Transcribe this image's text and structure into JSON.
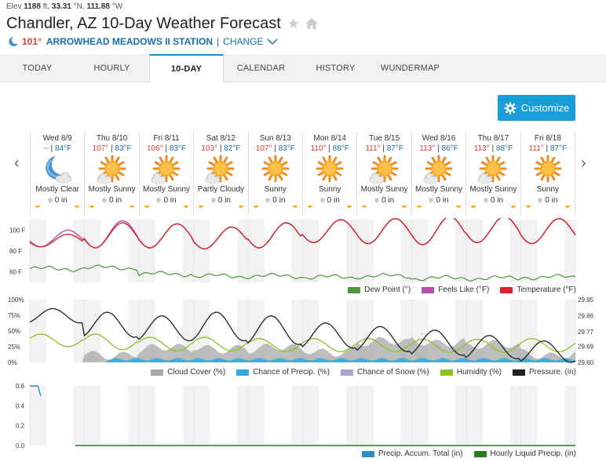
{
  "header": {
    "elev_label": "Elev",
    "elev_value": "1188",
    "elev_unit": "ft,",
    "lat_value": "33.31",
    "lat_unit": "°N,",
    "lon_value": "111.88",
    "lon_unit": "°W",
    "title": "Chandler, AZ 10-Day Weather Forecast",
    "current_temp": "101°",
    "station": "ARROWHEAD MEADOWS II STATION",
    "separator": "|",
    "change_label": "CHANGE"
  },
  "tabs": [
    {
      "label": "TODAY"
    },
    {
      "label": "HOURLY"
    },
    {
      "label": "10-DAY"
    },
    {
      "label": "CALENDAR"
    },
    {
      "label": "HISTORY"
    },
    {
      "label": "WUNDERMAP"
    }
  ],
  "customize_label": "Customize",
  "days": [
    {
      "date": "Wed 8/9",
      "hi": "--",
      "lo": "84°F",
      "icon": "moon-cloud-icon",
      "cond": "Mostly Clear",
      "precip": "0 in"
    },
    {
      "date": "Thu 8/10",
      "hi": "107°",
      "lo": "83°F",
      "icon": "sun-cloud-icon",
      "cond": "Mostly Sunny",
      "precip": "0 in"
    },
    {
      "date": "Fri 8/11",
      "hi": "106°",
      "lo": "83°F",
      "icon": "sun-cloud-icon",
      "cond": "Mostly Sunny",
      "precip": "0 in"
    },
    {
      "date": "Sat 8/12",
      "hi": "103°",
      "lo": "82°F",
      "icon": "sun-cloud-icon",
      "cond": "Partly Cloudy",
      "precip": "0 in"
    },
    {
      "date": "Sun 8/13",
      "hi": "107°",
      "lo": "83°F",
      "icon": "sun-icon",
      "cond": "Sunny",
      "precip": "0 in"
    },
    {
      "date": "Mon 8/14",
      "hi": "110°",
      "lo": "88°F",
      "icon": "sun-icon",
      "cond": "Sunny",
      "precip": "0 in"
    },
    {
      "date": "Tue 8/15",
      "hi": "111°",
      "lo": "87°F",
      "icon": "sun-cloud-icon",
      "cond": "Mostly Sunny",
      "precip": "0 in"
    },
    {
      "date": "Wed 8/16",
      "hi": "113°",
      "lo": "86°F",
      "icon": "sun-cloud-icon",
      "cond": "Mostly Sunny",
      "precip": "0 in"
    },
    {
      "date": "Thu 8/17",
      "hi": "113°",
      "lo": "88°F",
      "icon": "sun-cloud-icon",
      "cond": "Mostly Sunny",
      "precip": "0 in"
    },
    {
      "date": "Fri 8/18",
      "hi": "111°",
      "lo": "87°F",
      "icon": "sun-icon",
      "cond": "Sunny",
      "precip": "0 in"
    }
  ],
  "colors": {
    "temperature": "#d9232d",
    "feels_like": "#b050a8",
    "dew_point": "#4a9a3a",
    "cloud_cover": "#a8a8a8",
    "chance_precip": "#33aadd",
    "chance_snow": "#b0a0d0",
    "humidity": "#8ac41e",
    "pressure": "#222222",
    "precip_accum": "#2e8bc0",
    "hourly_liquid": "#2a7a20"
  },
  "chart_data": [
    {
      "type": "line",
      "yticks": [
        "100 F",
        "80 F",
        "60 F"
      ],
      "y_tick_values": [
        100,
        80,
        60
      ],
      "ylim": [
        50,
        110
      ],
      "series": [
        {
          "name": "Temperature (°F)",
          "key": "temperature",
          "daily_high": [
            96,
            107,
            106,
            103,
            107,
            110,
            111,
            113,
            113,
            111
          ],
          "daily_low": [
            84,
            83,
            83,
            82,
            83,
            88,
            87,
            86,
            88,
            87
          ]
        },
        {
          "name": "Feels Like (°F)",
          "key": "feels_like",
          "daily_high": [
            100,
            109,
            106,
            103,
            107,
            110,
            111,
            113,
            113,
            111
          ],
          "daily_low": [
            84,
            83,
            83,
            82,
            83,
            88,
            87,
            86,
            88,
            87
          ]
        },
        {
          "name": "Dew Point (°)",
          "key": "dew_point",
          "daily": [
            63,
            64,
            58,
            56,
            56,
            55,
            56,
            54,
            54,
            55
          ]
        }
      ]
    },
    {
      "type": "line",
      "yticks_left": [
        "100%",
        "75%",
        "50%",
        "25%",
        "0%"
      ],
      "y_tick_values_left": [
        100,
        75,
        50,
        25,
        0
      ],
      "yticks_right": [
        "29.95",
        "29.86",
        "29.77",
        "29.69",
        "29.60"
      ],
      "y_tick_values_right": [
        29.95,
        29.86,
        29.77,
        29.69,
        29.6
      ],
      "series": [
        {
          "name": "Cloud Cover (%)",
          "key": "cloud_cover",
          "daily": [
            0,
            15,
            20,
            25,
            20,
            20,
            30,
            35,
            25,
            15
          ]
        },
        {
          "name": "Chance of Precip. (%)",
          "key": "chance_precip",
          "daily": [
            0,
            5,
            5,
            5,
            5,
            5,
            5,
            5,
            5,
            5
          ]
        },
        {
          "name": "Chance of Snow (%)",
          "key": "chance_snow",
          "daily": [
            0,
            0,
            0,
            0,
            0,
            0,
            0,
            0,
            0,
            0
          ]
        },
        {
          "name": "Humidity (%)",
          "key": "humidity",
          "daily_max": [
            45,
            45,
            40,
            40,
            38,
            38,
            38,
            37,
            37,
            38
          ],
          "daily_min": [
            25,
            20,
            18,
            18,
            17,
            17,
            17,
            16,
            16,
            17
          ]
        },
        {
          "name": "Pressure. (in)",
          "key": "pressure",
          "daily_max": [
            29.9,
            29.88,
            29.86,
            29.88,
            29.86,
            29.82,
            29.8,
            29.78,
            29.75,
            29.72
          ],
          "daily_min": [
            29.82,
            29.74,
            29.72,
            29.72,
            29.7,
            29.68,
            29.66,
            29.64,
            29.62,
            29.6
          ]
        }
      ]
    },
    {
      "type": "line",
      "yticks": [
        "0.6",
        "0.4",
        "0.2",
        "0.0"
      ],
      "y_tick_values": [
        0.6,
        0.4,
        0.2,
        0.0
      ],
      "series": [
        {
          "name": "Precip. Accum. Total (in)",
          "key": "precip_accum",
          "values": [
            0.6,
            0.5
          ]
        },
        {
          "name": "Hourly Liquid Precip. (in)",
          "key": "hourly_liquid",
          "values": [
            0,
            0,
            0,
            0,
            0,
            0,
            0,
            0,
            0,
            0
          ]
        }
      ]
    }
  ]
}
